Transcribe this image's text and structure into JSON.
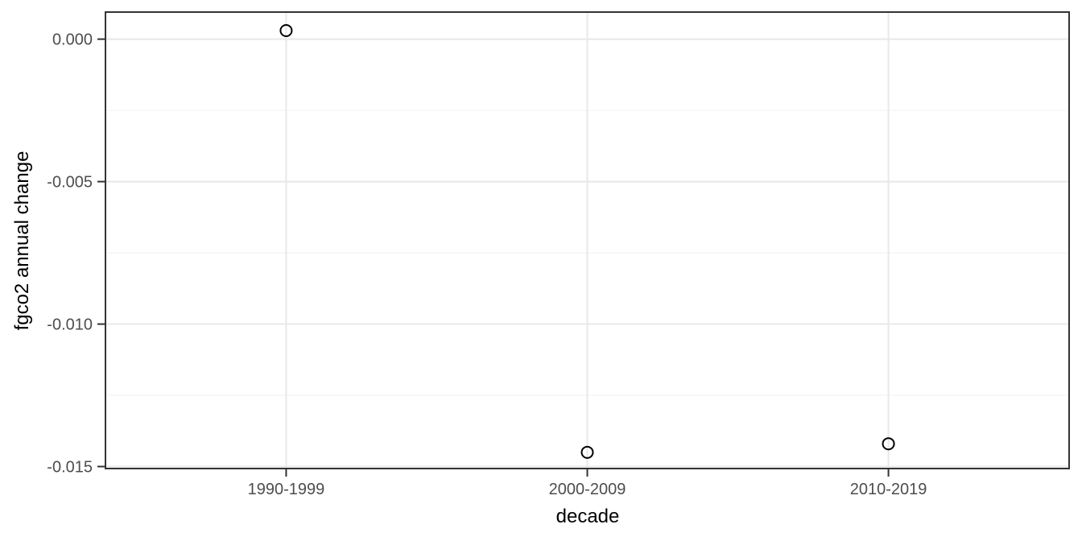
{
  "chart_data": {
    "type": "scatter",
    "title": "",
    "xlabel": "decade",
    "ylabel": "fgco2 annual change",
    "categories": [
      "1990-1999",
      "2000-2009",
      "2010-2019"
    ],
    "values": [
      0.0003,
      -0.0145,
      -0.0142
    ],
    "ylim": [
      -0.01507,
      0.00095
    ],
    "yticks": [
      {
        "value": 0.0,
        "label": "0.000"
      },
      {
        "value": -0.005,
        "label": "-0.005"
      },
      {
        "value": -0.01,
        "label": "-0.010"
      },
      {
        "value": -0.015,
        "label": "-0.015"
      }
    ],
    "yticks_minor": [
      -0.0025,
      -0.0075,
      -0.0125
    ],
    "grid": true,
    "legend": "none",
    "point_style": "open-circle",
    "colors": {
      "background": "#ffffff",
      "panel_background": "#ffffff",
      "grid_major": "#e8e8e8",
      "grid_minor": "#f0f0f0",
      "panel_border": "#333333",
      "tick_mark": "#333333",
      "tick_label": "#4d4d4d",
      "axis_title": "#000000",
      "point_stroke": "#000000"
    }
  }
}
